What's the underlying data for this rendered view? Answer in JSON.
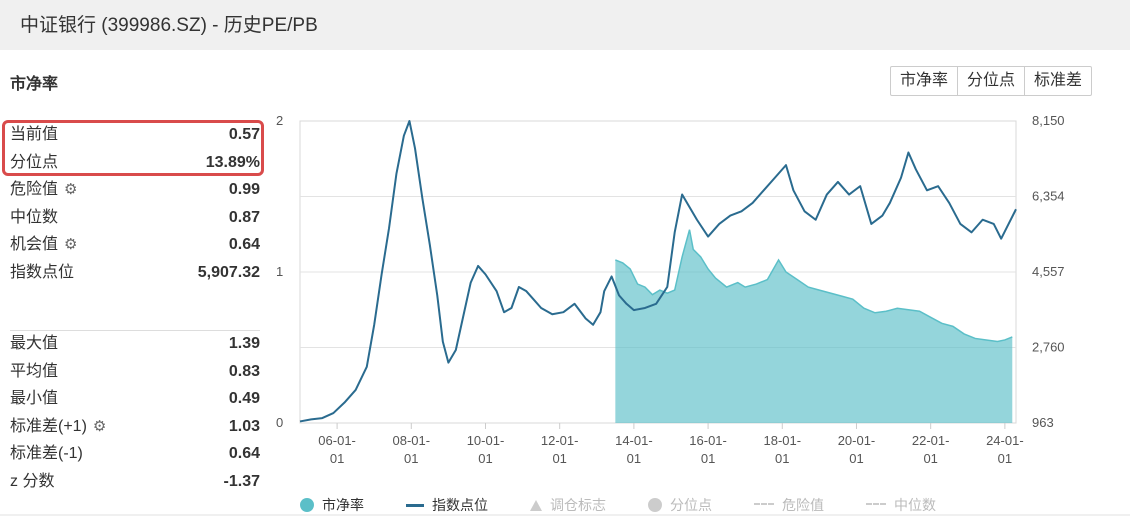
{
  "header": {
    "title": "中证银行 (399986.SZ) - 历史PE/PB"
  },
  "section": {
    "title": "市净率"
  },
  "tabs": [
    "市净率",
    "分位点",
    "标准差"
  ],
  "stats_top": [
    {
      "label": "当前值",
      "value": "0.57",
      "gear": false
    },
    {
      "label": "分位点",
      "value": "13.89%",
      "gear": false
    },
    {
      "label": "危险值",
      "value": "0.99",
      "gear": true
    },
    {
      "label": "中位数",
      "value": "0.87",
      "gear": false
    },
    {
      "label": "机会值",
      "value": "0.64",
      "gear": true
    },
    {
      "label": "指数点位",
      "value": "5,907.32",
      "gear": false
    }
  ],
  "stats_bottom": [
    {
      "label": "最大值",
      "value": "1.39",
      "gear": false
    },
    {
      "label": "平均值",
      "value": "0.83",
      "gear": false
    },
    {
      "label": "最小值",
      "value": "0.49",
      "gear": false
    },
    {
      "label": "标准差(+1)",
      "value": "1.03",
      "gear": true
    },
    {
      "label": "标准差(-1)",
      "value": "0.64",
      "gear": false
    },
    {
      "label": "z 分数",
      "value": "-1.37",
      "gear": false
    }
  ],
  "icons": {
    "gear": "gear-icon"
  },
  "chart_data": {
    "type": "line",
    "x_ticks": [
      "06-01-01",
      "08-01-01",
      "10-01-01",
      "12-01-01",
      "14-01-01",
      "16-01-01",
      "18-01-01",
      "20-01-01",
      "22-01-01",
      "24-01-01"
    ],
    "x_range": [
      2005.0,
      2024.3
    ],
    "y_left": {
      "ticks": [
        "0",
        "1",
        "2"
      ],
      "range": [
        0,
        2
      ]
    },
    "y_right": {
      "ticks": [
        "963",
        "2,760",
        "4,557",
        "6,354",
        "8,150"
      ],
      "range": [
        963,
        8150
      ]
    },
    "grid": true,
    "series": [
      {
        "name": "市净率",
        "type": "area",
        "axis": "left",
        "color": "#5bbfc8",
        "points": [
          [
            2013.5,
            1.08
          ],
          [
            2013.7,
            1.06
          ],
          [
            2013.9,
            1.02
          ],
          [
            2014.1,
            0.92
          ],
          [
            2014.3,
            0.9
          ],
          [
            2014.5,
            0.85
          ],
          [
            2014.7,
            0.88
          ],
          [
            2014.9,
            0.86
          ],
          [
            2015.1,
            0.88
          ],
          [
            2015.3,
            1.1
          ],
          [
            2015.5,
            1.28
          ],
          [
            2015.6,
            1.15
          ],
          [
            2015.8,
            1.1
          ],
          [
            2016.0,
            1.02
          ],
          [
            2016.2,
            0.96
          ],
          [
            2016.5,
            0.9
          ],
          [
            2016.8,
            0.93
          ],
          [
            2017.0,
            0.9
          ],
          [
            2017.3,
            0.92
          ],
          [
            2017.6,
            0.95
          ],
          [
            2017.9,
            1.08
          ],
          [
            2018.1,
            1.0
          ],
          [
            2018.4,
            0.95
          ],
          [
            2018.7,
            0.9
          ],
          [
            2019.0,
            0.88
          ],
          [
            2019.3,
            0.86
          ],
          [
            2019.6,
            0.84
          ],
          [
            2019.9,
            0.82
          ],
          [
            2020.2,
            0.76
          ],
          [
            2020.5,
            0.73
          ],
          [
            2020.8,
            0.74
          ],
          [
            2021.1,
            0.76
          ],
          [
            2021.4,
            0.75
          ],
          [
            2021.7,
            0.74
          ],
          [
            2022.0,
            0.7
          ],
          [
            2022.3,
            0.66
          ],
          [
            2022.6,
            0.64
          ],
          [
            2022.9,
            0.59
          ],
          [
            2023.2,
            0.56
          ],
          [
            2023.5,
            0.55
          ],
          [
            2023.8,
            0.54
          ],
          [
            2024.0,
            0.55
          ],
          [
            2024.2,
            0.57
          ]
        ]
      },
      {
        "name": "指数点位",
        "type": "line",
        "axis": "right",
        "color": "#2a6b8f",
        "points": [
          [
            2005.0,
            1000
          ],
          [
            2005.3,
            1050
          ],
          [
            2005.6,
            1080
          ],
          [
            2005.9,
            1200
          ],
          [
            2006.2,
            1450
          ],
          [
            2006.5,
            1750
          ],
          [
            2006.8,
            2300
          ],
          [
            2007.0,
            3300
          ],
          [
            2007.2,
            4500
          ],
          [
            2007.4,
            5600
          ],
          [
            2007.6,
            6900
          ],
          [
            2007.8,
            7800
          ],
          [
            2007.95,
            8150
          ],
          [
            2008.1,
            7500
          ],
          [
            2008.3,
            6300
          ],
          [
            2008.5,
            5200
          ],
          [
            2008.7,
            4000
          ],
          [
            2008.85,
            2900
          ],
          [
            2009.0,
            2400
          ],
          [
            2009.2,
            2700
          ],
          [
            2009.4,
            3500
          ],
          [
            2009.6,
            4300
          ],
          [
            2009.8,
            4700
          ],
          [
            2010.0,
            4500
          ],
          [
            2010.3,
            4100
          ],
          [
            2010.5,
            3600
          ],
          [
            2010.7,
            3700
          ],
          [
            2010.9,
            4200
          ],
          [
            2011.1,
            4100
          ],
          [
            2011.3,
            3900
          ],
          [
            2011.5,
            3700
          ],
          [
            2011.8,
            3550
          ],
          [
            2012.1,
            3600
          ],
          [
            2012.4,
            3800
          ],
          [
            2012.7,
            3450
          ],
          [
            2012.9,
            3300
          ],
          [
            2013.1,
            3600
          ],
          [
            2013.2,
            4100
          ],
          [
            2013.4,
            4450
          ],
          [
            2013.6,
            4000
          ],
          [
            2013.8,
            3800
          ],
          [
            2014.0,
            3650
          ],
          [
            2014.3,
            3700
          ],
          [
            2014.6,
            3800
          ],
          [
            2014.9,
            4200
          ],
          [
            2015.1,
            5500
          ],
          [
            2015.3,
            6400
          ],
          [
            2015.5,
            6100
          ],
          [
            2015.7,
            5800
          ],
          [
            2016.0,
            5400
          ],
          [
            2016.3,
            5700
          ],
          [
            2016.6,
            5900
          ],
          [
            2016.9,
            6000
          ],
          [
            2017.2,
            6200
          ],
          [
            2017.5,
            6500
          ],
          [
            2017.8,
            6800
          ],
          [
            2018.1,
            7100
          ],
          [
            2018.3,
            6500
          ],
          [
            2018.6,
            6000
          ],
          [
            2018.9,
            5800
          ],
          [
            2019.2,
            6400
          ],
          [
            2019.5,
            6700
          ],
          [
            2019.8,
            6400
          ],
          [
            2020.1,
            6600
          ],
          [
            2020.4,
            5700
          ],
          [
            2020.7,
            5900
          ],
          [
            2020.9,
            6200
          ],
          [
            2021.2,
            6800
          ],
          [
            2021.4,
            7400
          ],
          [
            2021.6,
            7000
          ],
          [
            2021.9,
            6500
          ],
          [
            2022.2,
            6600
          ],
          [
            2022.5,
            6200
          ],
          [
            2022.8,
            5700
          ],
          [
            2023.1,
            5500
          ],
          [
            2023.4,
            5800
          ],
          [
            2023.7,
            5700
          ],
          [
            2023.9,
            5350
          ],
          [
            2024.1,
            5700
          ],
          [
            2024.3,
            6050
          ]
        ]
      }
    ],
    "legend": [
      {
        "name": "市净率",
        "marker": "dot",
        "color": "#5bbfc8",
        "active": true
      },
      {
        "name": "指数点位",
        "marker": "line",
        "color": "#2a6b8f",
        "active": true
      },
      {
        "name": "调仓标志",
        "marker": "triangle",
        "color": "#cccccc",
        "active": false
      },
      {
        "name": "分位点",
        "marker": "dot",
        "color": "#cccccc",
        "active": false
      },
      {
        "name": "危险值",
        "marker": "dash",
        "color": "#cccccc",
        "active": false
      },
      {
        "name": "中位数",
        "marker": "dash",
        "color": "#cccccc",
        "active": false
      }
    ],
    "legend_position": "bottom"
  }
}
